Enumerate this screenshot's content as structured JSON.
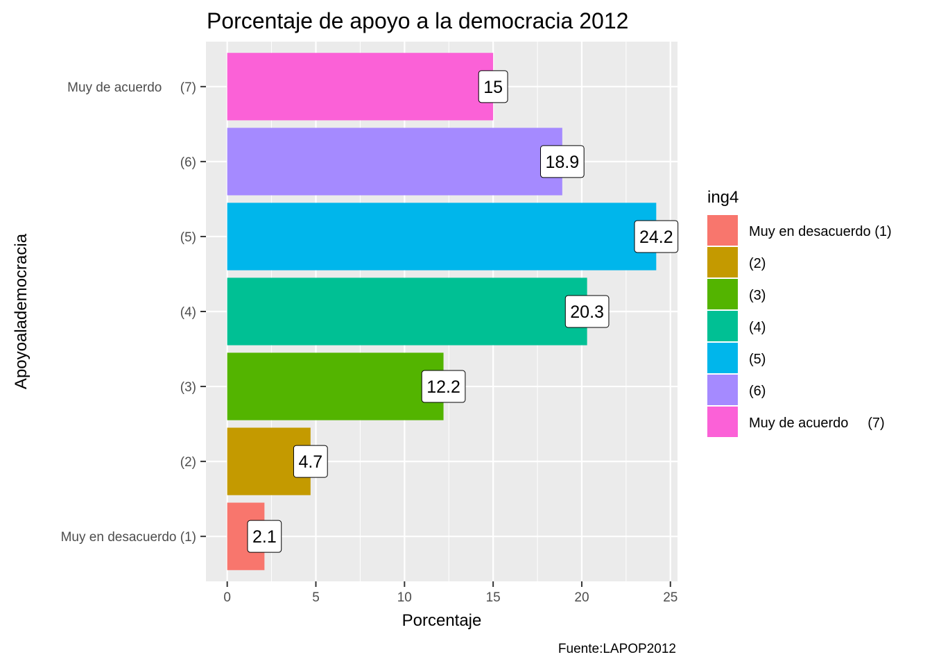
{
  "chart_data": {
    "type": "bar",
    "orientation": "horizontal",
    "title": "Porcentaje de apoyo a la democracia 2012",
    "xlabel": "Porcentaje",
    "ylabel": "Apoyoalademocracia",
    "caption": "Fuente:LAPOP2012",
    "categories": [
      "Muy en desacuerdo (1)",
      "(2)",
      "(3)",
      "(4)",
      "(5)",
      "(6)",
      "Muy de acuerdo     (7)"
    ],
    "values": [
      2.1,
      4.7,
      12.2,
      20.3,
      24.2,
      18.9,
      15
    ],
    "value_labels": [
      "2.1",
      "4.7",
      "12.2",
      "20.3",
      "24.2",
      "18.9",
      "15"
    ],
    "colors": [
      "#F8766D",
      "#C49A00",
      "#53B400",
      "#00C094",
      "#00B6EB",
      "#A58AFF",
      "#FB61D7"
    ],
    "xlim": [
      -1.2,
      25.4
    ],
    "x_ticks": [
      0,
      5,
      10,
      15,
      20,
      25
    ],
    "x_tick_labels": [
      "0",
      "5",
      "10",
      "15",
      "20",
      "25"
    ],
    "grid": true,
    "panel_background": "#EBEBEB",
    "legend": {
      "title": "ing4",
      "position": "right",
      "items": [
        "Muy en desacuerdo (1)",
        "(2)",
        "(3)",
        "(4)",
        "(5)",
        "(6)",
        "Muy de acuerdo     (7)"
      ]
    }
  }
}
